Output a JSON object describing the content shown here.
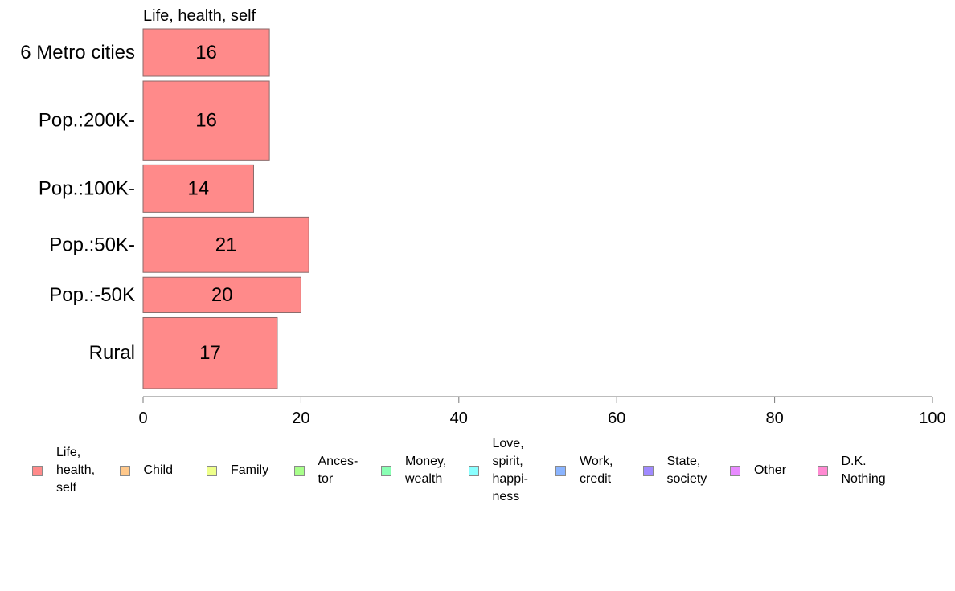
{
  "chart_data": {
    "type": "bar",
    "orientation": "horizontal",
    "stacked": true,
    "series_header": "Life, health, self",
    "categories": [
      "6 Metro cities",
      "Pop.:200K-",
      "Pop.:100K-",
      "Pop.:50K-",
      "Pop.:-50K",
      "Rural"
    ],
    "series": [
      {
        "name": "Life, health, self",
        "values": [
          16,
          16,
          14,
          21,
          20,
          17
        ],
        "labels": [
          "16",
          "16",
          "14",
          "21",
          "20",
          "17"
        ],
        "color": "#ff8a8a"
      }
    ],
    "row_weights": [
      0.6,
      1.0,
      0.6,
      0.7,
      0.45,
      0.9
    ],
    "xlim": [
      0,
      100
    ],
    "x_ticks": [
      0,
      20,
      40,
      60,
      80,
      100
    ],
    "x_tick_labels": [
      "0",
      "20",
      "40",
      "60",
      "80",
      "100"
    ],
    "grid": false,
    "legend_position": "bottom",
    "legend": [
      {
        "label": "Life,\nhealth,\nself",
        "color": "#ff8a8a"
      },
      {
        "label": "Child",
        "color": "#ffc88a"
      },
      {
        "label": "Family",
        "color": "#eeff8a"
      },
      {
        "label": "Ances-\ntor",
        "color": "#a8ff8a"
      },
      {
        "label": "Money,\nwealth",
        "color": "#8affb4"
      },
      {
        "label": "Love,\nspirit,\nhappi-\nness",
        "color": "#8affff"
      },
      {
        "label": "Work,\ncredit",
        "color": "#8ab4ff"
      },
      {
        "label": "State,\nsociety",
        "color": "#a08aff"
      },
      {
        "label": "Other",
        "color": "#e88aff"
      },
      {
        "label": "D.K.\nNothing",
        "color": "#ff8ad2"
      }
    ]
  }
}
